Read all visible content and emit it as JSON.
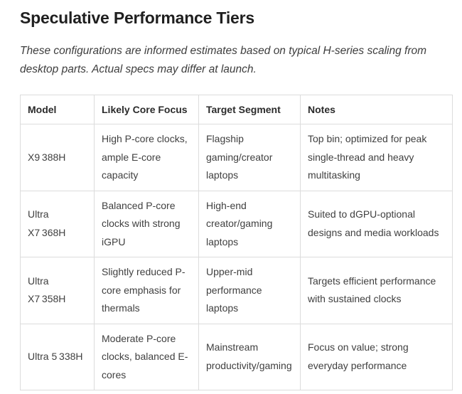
{
  "page": {
    "title": "Speculative Performance Tiers",
    "note": "These configurations are informed estimates based on typical H-series scaling from desktop parts. Actual specs may differ at launch."
  },
  "table": {
    "columns": [
      "Model",
      "Likely Core Focus",
      "Target Segment",
      "Notes"
    ],
    "rows": [
      {
        "model": "X9 388H",
        "core_focus": "High P-core clocks, ample E-core capacity",
        "target_segment": "Flagship gaming/creator laptops",
        "notes": "Top bin; optimized for peak single-thread and heavy multitasking"
      },
      {
        "model": "Ultra X7 368H",
        "core_focus": "Balanced P-core clocks with strong iGPU",
        "target_segment": "High-end creator/gaming laptops",
        "notes": "Suited to dGPU-optional designs and media workloads"
      },
      {
        "model": "Ultra X7 358H",
        "core_focus": "Slightly reduced P-core emphasis for thermals",
        "target_segment": "Upper-mid performance laptops",
        "notes": "Targets efficient performance with sustained clocks"
      },
      {
        "model": "Ultra 5 338H",
        "core_focus": "Moderate P-core clocks, balanced E-cores",
        "target_segment": "Mainstream productivity/gaming",
        "notes": "Focus on value; strong everyday performance"
      }
    ]
  }
}
